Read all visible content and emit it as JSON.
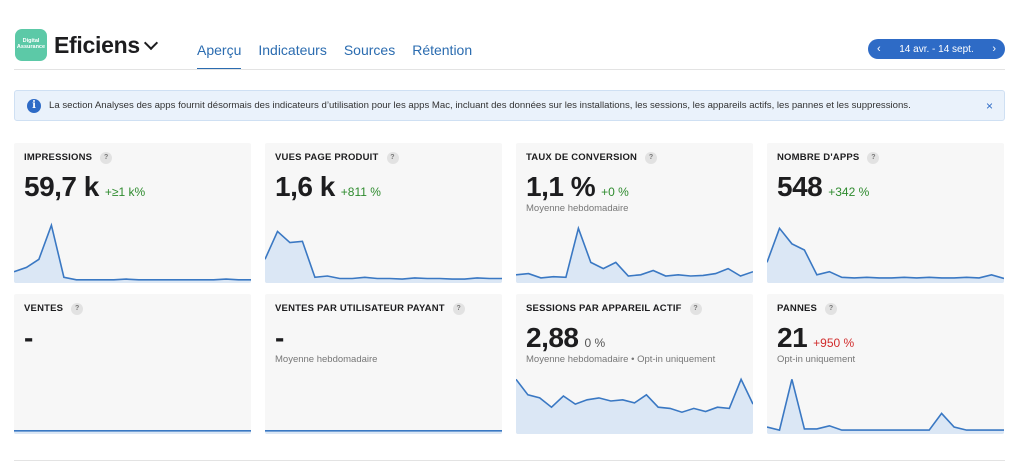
{
  "app": {
    "icon_text_line1": "Digital",
    "icon_text_line2": "Assurance",
    "name": "Eficiens"
  },
  "tabs": [
    {
      "label": "Aperçu",
      "active": true
    },
    {
      "label": "Indicateurs",
      "active": false
    },
    {
      "label": "Sources",
      "active": false
    },
    {
      "label": "Rétention",
      "active": false
    }
  ],
  "date_range": {
    "label": "14 avr. - 14 sept.",
    "prev": "‹",
    "next": "›"
  },
  "banner": {
    "icon": "i",
    "text": "La section Analyses des apps fournit désormais des indicateurs d’utilisation pour les apps Mac, incluant des données sur les installations, les sessions, les appareils actifs, les pannes et les suppressions.",
    "close": "×"
  },
  "cards": [
    {
      "title": "IMPRESSIONS",
      "value": "59,7 k",
      "change": "+≥1 k%",
      "sub": "",
      "spark": [
        0.15,
        0.22,
        0.35,
        0.9,
        0.06,
        0.02,
        0.02,
        0.02,
        0.02,
        0.03,
        0.02,
        0.02,
        0.02,
        0.02,
        0.02,
        0.02,
        0.02,
        0.03,
        0.02,
        0.02
      ]
    },
    {
      "title": "VUES PAGE PRODUIT",
      "value": "1,6 k",
      "change": "+811 %",
      "sub": "",
      "spark": [
        0.35,
        0.8,
        0.62,
        0.64,
        0.06,
        0.08,
        0.04,
        0.04,
        0.06,
        0.04,
        0.04,
        0.03,
        0.05,
        0.04,
        0.04,
        0.03,
        0.03,
        0.05,
        0.04,
        0.04
      ]
    },
    {
      "title": "TAUX DE CONVERSION",
      "value": "1,1 %",
      "change": "+0 %",
      "sub": "Moyenne hebdomadaire",
      "spark": [
        0.1,
        0.12,
        0.05,
        0.07,
        0.06,
        0.85,
        0.3,
        0.2,
        0.3,
        0.08,
        0.1,
        0.17,
        0.08,
        0.1,
        0.08,
        0.09,
        0.12,
        0.2,
        0.08,
        0.15
      ]
    },
    {
      "title": "NOMBRE D'APPS",
      "value": "548",
      "change": "+342 %",
      "sub": "",
      "spark": [
        0.3,
        0.85,
        0.6,
        0.5,
        0.1,
        0.15,
        0.06,
        0.05,
        0.06,
        0.05,
        0.05,
        0.06,
        0.05,
        0.06,
        0.05,
        0.05,
        0.06,
        0.05,
        0.1,
        0.04
      ]
    },
    {
      "title": "VENTES",
      "value": "-",
      "change": "",
      "sub": "",
      "spark": [
        0.02,
        0.02,
        0.02,
        0.02,
        0.02,
        0.02,
        0.02,
        0.02,
        0.02,
        0.02,
        0.02,
        0.02,
        0.02,
        0.02,
        0.02,
        0.02,
        0.02,
        0.02,
        0.02,
        0.02
      ]
    },
    {
      "title": "VENTES PAR UTILISATEUR PAYANT",
      "value": "-",
      "change": "",
      "sub": "Moyenne hebdomadaire",
      "spark": [
        0.02,
        0.02,
        0.02,
        0.02,
        0.02,
        0.02,
        0.02,
        0.02,
        0.02,
        0.02,
        0.02,
        0.02,
        0.02,
        0.02,
        0.02,
        0.02,
        0.02,
        0.02,
        0.02,
        0.02
      ]
    },
    {
      "title": "SESSIONS PAR APPAREIL ACTIF",
      "value": "2,88",
      "change": "0 %",
      "sub": "Moyenne hebdomadaire • Opt-in uniquement",
      "spark": [
        0.85,
        0.6,
        0.55,
        0.4,
        0.58,
        0.45,
        0.52,
        0.55,
        0.5,
        0.52,
        0.47,
        0.6,
        0.4,
        0.38,
        0.32,
        0.38,
        0.33,
        0.4,
        0.38,
        0.85,
        0.45
      ]
    },
    {
      "title": "PANNES",
      "value": "21",
      "change": "+950 %",
      "sub": "Opt-in uniquement",
      "spark": [
        0.08,
        0.03,
        0.85,
        0.05,
        0.05,
        0.1,
        0.03,
        0.03,
        0.03,
        0.03,
        0.03,
        0.03,
        0.03,
        0.03,
        0.3,
        0.08,
        0.03,
        0.03,
        0.03,
        0.03
      ]
    }
  ],
  "colors": {
    "accent": "#2e6bc6",
    "positive": "#2e8b2e",
    "negative": "#d12c2c",
    "spark_line": "#3a78c3",
    "spark_fill": "#dbe7f5"
  }
}
